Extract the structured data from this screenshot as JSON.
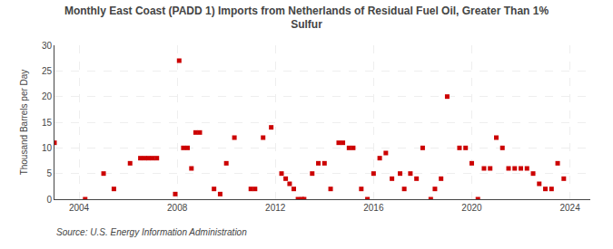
{
  "chart_data": {
    "type": "scatter",
    "title": "Monthly East Coast (PADD 1) Imports from Netherlands of Residual Fuel Oil, Greater Than 1%",
    "subtitle": "Sulfur",
    "y_label": "Thousand Barrels per Day",
    "annotations": [
      "Source: U.S. Energy Information Administration"
    ],
    "x": [
      2003.0,
      2004.25,
      2005.0,
      2005.42,
      2006.08,
      2006.5,
      2006.67,
      2006.83,
      2007.0,
      2007.17,
      2007.92,
      2008.08,
      2008.25,
      2008.42,
      2008.58,
      2008.75,
      2008.92,
      2009.5,
      2009.75,
      2010.0,
      2010.33,
      2011.0,
      2011.17,
      2011.5,
      2011.83,
      2012.25,
      2012.42,
      2012.58,
      2012.75,
      2012.92,
      2013.08,
      2013.17,
      2013.5,
      2013.75,
      2014.0,
      2014.25,
      2014.58,
      2014.75,
      2015.0,
      2015.17,
      2015.5,
      2015.75,
      2016.0,
      2016.25,
      2016.5,
      2016.75,
      2017.08,
      2017.25,
      2017.5,
      2017.75,
      2018.0,
      2018.33,
      2018.5,
      2018.75,
      2019.0,
      2019.5,
      2019.75,
      2020.0,
      2020.25,
      2020.5,
      2020.75,
      2021.0,
      2021.25,
      2021.5,
      2021.75,
      2022.0,
      2022.25,
      2022.5,
      2022.75,
      2023.0,
      2023.25,
      2023.5,
      2023.75
    ],
    "values": [
      11,
      0,
      5,
      2,
      7,
      8,
      8,
      8,
      8,
      8,
      1,
      27,
      10,
      10,
      6,
      13,
      13,
      2,
      1,
      7,
      12,
      2,
      2,
      12,
      14,
      5,
      4,
      3,
      2,
      0,
      0,
      0,
      5,
      7,
      7,
      2,
      11,
      11,
      10,
      10,
      2,
      0,
      5,
      8,
      9,
      4,
      5,
      2,
      5,
      4,
      10,
      0,
      2,
      4,
      20,
      10,
      10,
      7,
      0,
      6,
      6,
      12,
      10,
      6,
      6,
      6,
      6,
      5,
      3,
      2,
      2,
      7,
      4
    ],
    "color": "#cc0000",
    "marker": "square",
    "xlim": [
      2003.0,
      2024.83
    ],
    "xticks": [
      2004,
      2008,
      2012,
      2016,
      2020,
      2024
    ],
    "ylim": [
      0,
      30
    ],
    "yticks": [
      0,
      5,
      10,
      15,
      20,
      25,
      30
    ],
    "grid": true
  }
}
